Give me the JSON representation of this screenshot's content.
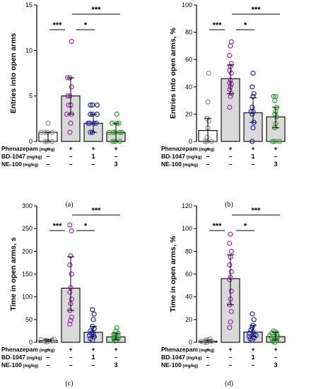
{
  "rows": {
    "labels": [
      "Phenazepam",
      "BD-1047",
      "NE-100"
    ],
    "units": "(mg/kg)",
    "values": [
      [
        "–",
        "+",
        "+",
        "+"
      ],
      [
        "–",
        "–",
        "1",
        "–"
      ],
      [
        "–",
        "–",
        "–",
        "3"
      ]
    ]
  },
  "group_colors": [
    "#8c8c8c",
    "#9b2fae",
    "#2525b8",
    "#2d9e2d"
  ],
  "bar_fill": "#d9d9d9",
  "chart_data": [
    {
      "type": "bar",
      "panel_label": "(a)",
      "ylabel": "Entries into open arms",
      "ylim": [
        0,
        15
      ],
      "yticks": [
        "0",
        "5",
        "10",
        "15"
      ],
      "values": [
        1,
        5,
        2,
        1
      ],
      "error_low": [
        0,
        3,
        1,
        0
      ],
      "error_high": [
        1,
        7,
        3,
        2
      ],
      "points": [
        [
          0,
          0,
          0,
          1,
          1,
          1,
          1,
          2
        ],
        [
          1,
          2,
          3,
          3,
          4,
          4,
          5,
          5,
          6,
          7,
          7,
          11
        ],
        [
          1,
          1,
          2,
          2,
          2,
          2,
          3,
          3,
          3,
          4,
          4,
          4
        ],
        [
          0,
          0,
          0,
          1,
          1,
          1,
          1,
          1,
          2,
          2,
          2,
          3
        ]
      ],
      "significance": [
        {
          "from": 0,
          "to": 1,
          "label": "***"
        },
        {
          "from": 1,
          "to": 2,
          "label": "*"
        },
        {
          "from": 1,
          "to": 3,
          "label": "***"
        }
      ]
    },
    {
      "type": "bar",
      "panel_label": "(b)",
      "ylabel": "Entries into open arms, %",
      "ylim": [
        0,
        100
      ],
      "yticks": [
        "0",
        "20",
        "40",
        "60",
        "80",
        "100"
      ],
      "values": [
        8,
        46,
        21,
        18
      ],
      "error_low": [
        0,
        35,
        14,
        10
      ],
      "error_high": [
        17,
        56,
        32,
        25
      ],
      "points": [
        [
          0,
          0,
          0,
          3,
          10,
          15,
          17,
          29,
          50
        ],
        [
          25,
          33,
          35,
          38,
          40,
          42,
          43,
          45,
          50,
          52,
          55,
          57,
          63,
          70,
          73
        ],
        [
          0,
          10,
          14,
          20,
          22,
          22,
          25,
          33,
          35,
          40,
          50
        ],
        [
          0,
          0,
          0,
          10,
          13,
          18,
          20,
          22,
          25,
          30,
          33,
          33
        ]
      ],
      "significance": [
        {
          "from": 0,
          "to": 1,
          "label": "***"
        },
        {
          "from": 1,
          "to": 2,
          "label": "*"
        },
        {
          "from": 1,
          "to": 3,
          "label": "***"
        }
      ]
    },
    {
      "type": "bar",
      "panel_label": "(c)",
      "ylabel": "Time in open arms, s",
      "ylim": [
        0,
        300
      ],
      "yticks": [
        "0",
        "50",
        "100",
        "150",
        "200",
        "250",
        "300"
      ],
      "values": [
        4,
        119,
        22,
        12
      ],
      "error_low": [
        2,
        70,
        12,
        6
      ],
      "error_high": [
        6,
        188,
        35,
        20
      ],
      "points": [
        [
          1,
          2,
          3,
          4,
          4,
          5,
          6,
          7
        ],
        [
          40,
          48,
          55,
          70,
          85,
          95,
          110,
          120,
          150,
          170,
          190,
          245,
          258
        ],
        [
          5,
          8,
          12,
          15,
          18,
          20,
          22,
          25,
          30,
          35,
          50,
          62,
          72
        ],
        [
          3,
          5,
          7,
          8,
          10,
          12,
          14,
          16,
          18,
          20,
          25,
          32
        ]
      ],
      "significance": [
        {
          "from": 0,
          "to": 1,
          "label": "***"
        },
        {
          "from": 1,
          "to": 2,
          "label": "*"
        },
        {
          "from": 1,
          "to": 3,
          "label": "***"
        }
      ]
    },
    {
      "type": "bar",
      "panel_label": "(d)",
      "ylabel": "Time in open arms, %",
      "ylim": [
        0,
        120
      ],
      "yticks": [
        "0",
        "20",
        "40",
        "60",
        "80",
        "100",
        "120"
      ],
      "values": [
        1,
        56,
        9,
        5
      ],
      "error_low": [
        0,
        33,
        5,
        2
      ],
      "error_high": [
        2,
        77,
        15,
        9
      ],
      "points": [
        [
          0,
          0,
          1,
          1,
          2,
          2,
          3
        ],
        [
          13,
          18,
          27,
          33,
          38,
          45,
          55,
          57,
          62,
          68,
          75,
          80,
          87,
          95
        ],
        [
          2,
          3,
          4,
          5,
          6,
          7,
          8,
          9,
          11,
          13,
          15,
          20,
          25
        ],
        [
          0,
          1,
          2,
          3,
          4,
          5,
          5,
          6,
          7,
          8,
          9,
          10
        ]
      ],
      "significance": [
        {
          "from": 0,
          "to": 1,
          "label": "***"
        },
        {
          "from": 1,
          "to": 2,
          "label": "*"
        },
        {
          "from": 1,
          "to": 3,
          "label": "***"
        }
      ]
    }
  ]
}
